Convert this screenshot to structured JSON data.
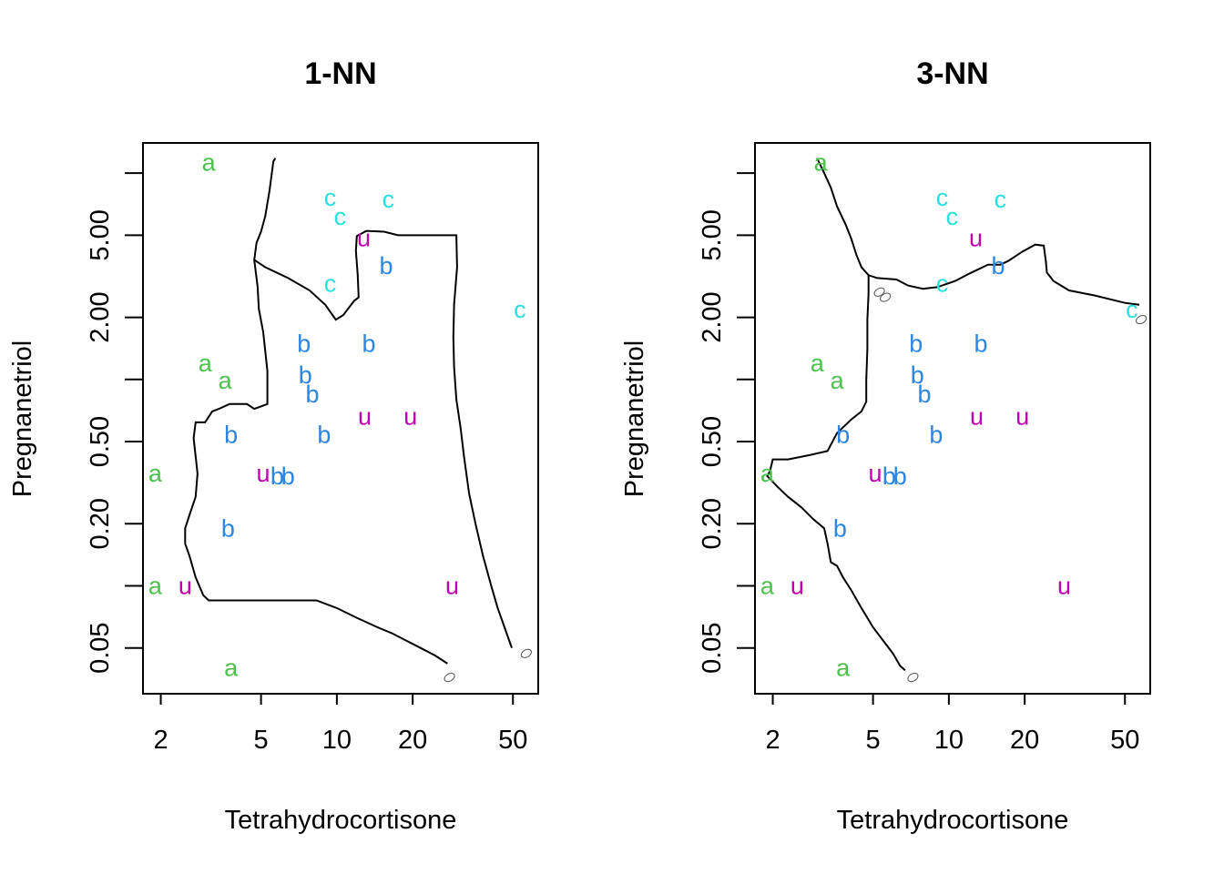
{
  "chart_data": [
    {
      "type": "scatter",
      "title": "1-NN",
      "xlabel": "Tetrahydrocortisone",
      "ylabel": "Pregnanetriol",
      "xscale": "log",
      "yscale": "log",
      "xlim": [
        1.7,
        63
      ],
      "ylim": [
        0.03,
        14
      ],
      "xticks": [
        2,
        5,
        10,
        20,
        50
      ],
      "xtick_labels": [
        "2",
        "5",
        "10",
        "20",
        "50"
      ],
      "yticks": [
        0.05,
        0.2,
        0.5,
        2,
        5
      ],
      "ytick_labels": [
        "0.05",
        "0.20",
        "0.50",
        "2.00",
        "5.00"
      ],
      "ytick_positions_extra": [
        0.1,
        1,
        10
      ],
      "grid": false,
      "legend": "none",
      "colors": {
        "a": "#4cc24c",
        "b": "#2a86e0",
        "c": "#29e0e0",
        "u": "#c000b0",
        "boundary": "#000000"
      },
      "points": [
        {
          "label": "a",
          "x": 3.1,
          "y": 11.24
        },
        {
          "label": "a",
          "x": 3.0,
          "y": 1.2
        },
        {
          "label": "a",
          "x": 3.6,
          "y": 0.99
        },
        {
          "label": "a",
          "x": 1.9,
          "y": 0.35
        },
        {
          "label": "a",
          "x": 1.9,
          "y": 0.1
        },
        {
          "label": "a",
          "x": 3.8,
          "y": 0.04
        },
        {
          "label": "b",
          "x": 7.4,
          "y": 1.49
        },
        {
          "label": "b",
          "x": 7.5,
          "y": 1.05
        },
        {
          "label": "b",
          "x": 8.0,
          "y": 0.85
        },
        {
          "label": "b",
          "x": 3.8,
          "y": 0.54
        },
        {
          "label": "b",
          "x": 8.9,
          "y": 0.54
        },
        {
          "label": "b",
          "x": 5.8,
          "y": 0.34
        },
        {
          "label": "b",
          "x": 6.4,
          "y": 0.34
        },
        {
          "label": "b",
          "x": 3.7,
          "y": 0.19
        },
        {
          "label": "b",
          "x": 13.4,
          "y": 1.49
        },
        {
          "label": "b",
          "x": 15.7,
          "y": 3.56
        },
        {
          "label": "c",
          "x": 9.4,
          "y": 7.62
        },
        {
          "label": "c",
          "x": 10.3,
          "y": 6.15
        },
        {
          "label": "c",
          "x": 16.0,
          "y": 7.44
        },
        {
          "label": "c",
          "x": 9.4,
          "y": 2.91
        },
        {
          "label": "c",
          "x": 53.3,
          "y": 2.18
        },
        {
          "label": "u",
          "x": 12.8,
          "y": 4.84
        },
        {
          "label": "u",
          "x": 12.9,
          "y": 0.66
        },
        {
          "label": "u",
          "x": 19.6,
          "y": 0.66
        },
        {
          "label": "u",
          "x": 5.1,
          "y": 0.35
        },
        {
          "label": "u",
          "x": 2.5,
          "y": 0.1
        },
        {
          "label": "u",
          "x": 28.7,
          "y": 0.1
        }
      ]
    },
    {
      "type": "scatter",
      "title": "3-NN",
      "xlabel": "Tetrahydrocortisone",
      "ylabel": "Pregnanetriol",
      "xscale": "log",
      "yscale": "log",
      "xlim": [
        1.7,
        63
      ],
      "ylim": [
        0.03,
        14
      ],
      "xticks": [
        2,
        5,
        10,
        20,
        50
      ],
      "xtick_labels": [
        "2",
        "5",
        "10",
        "20",
        "50"
      ],
      "yticks": [
        0.05,
        0.2,
        0.5,
        2,
        5
      ],
      "ytick_labels": [
        "0.05",
        "0.20",
        "0.50",
        "2.00",
        "5.00"
      ],
      "ytick_positions_extra": [
        0.1,
        1,
        10
      ],
      "grid": false,
      "legend": "none",
      "colors": {
        "a": "#4cc24c",
        "b": "#2a86e0",
        "c": "#29e0e0",
        "u": "#c000b0",
        "boundary": "#000000"
      },
      "points": [
        {
          "label": "a",
          "x": 3.1,
          "y": 11.24
        },
        {
          "label": "a",
          "x": 3.0,
          "y": 1.2
        },
        {
          "label": "a",
          "x": 3.6,
          "y": 0.99
        },
        {
          "label": "a",
          "x": 1.9,
          "y": 0.35
        },
        {
          "label": "a",
          "x": 1.9,
          "y": 0.1
        },
        {
          "label": "a",
          "x": 3.8,
          "y": 0.04
        },
        {
          "label": "b",
          "x": 7.4,
          "y": 1.49
        },
        {
          "label": "b",
          "x": 7.5,
          "y": 1.05
        },
        {
          "label": "b",
          "x": 8.0,
          "y": 0.85
        },
        {
          "label": "b",
          "x": 3.8,
          "y": 0.54
        },
        {
          "label": "b",
          "x": 8.9,
          "y": 0.54
        },
        {
          "label": "b",
          "x": 5.8,
          "y": 0.34
        },
        {
          "label": "b",
          "x": 6.4,
          "y": 0.34
        },
        {
          "label": "b",
          "x": 3.7,
          "y": 0.19
        },
        {
          "label": "b",
          "x": 13.4,
          "y": 1.49
        },
        {
          "label": "b",
          "x": 15.7,
          "y": 3.56
        },
        {
          "label": "c",
          "x": 9.4,
          "y": 7.62
        },
        {
          "label": "c",
          "x": 10.3,
          "y": 6.15
        },
        {
          "label": "c",
          "x": 16.0,
          "y": 7.44
        },
        {
          "label": "c",
          "x": 9.4,
          "y": 2.91
        },
        {
          "label": "c",
          "x": 53.3,
          "y": 2.18
        },
        {
          "label": "u",
          "x": 12.8,
          "y": 4.84
        },
        {
          "label": "u",
          "x": 12.9,
          "y": 0.66
        },
        {
          "label": "u",
          "x": 19.6,
          "y": 0.66
        },
        {
          "label": "u",
          "x": 5.1,
          "y": 0.35
        },
        {
          "label": "u",
          "x": 2.5,
          "y": 0.1
        },
        {
          "label": "u",
          "x": 28.7,
          "y": 0.1
        }
      ]
    }
  ]
}
